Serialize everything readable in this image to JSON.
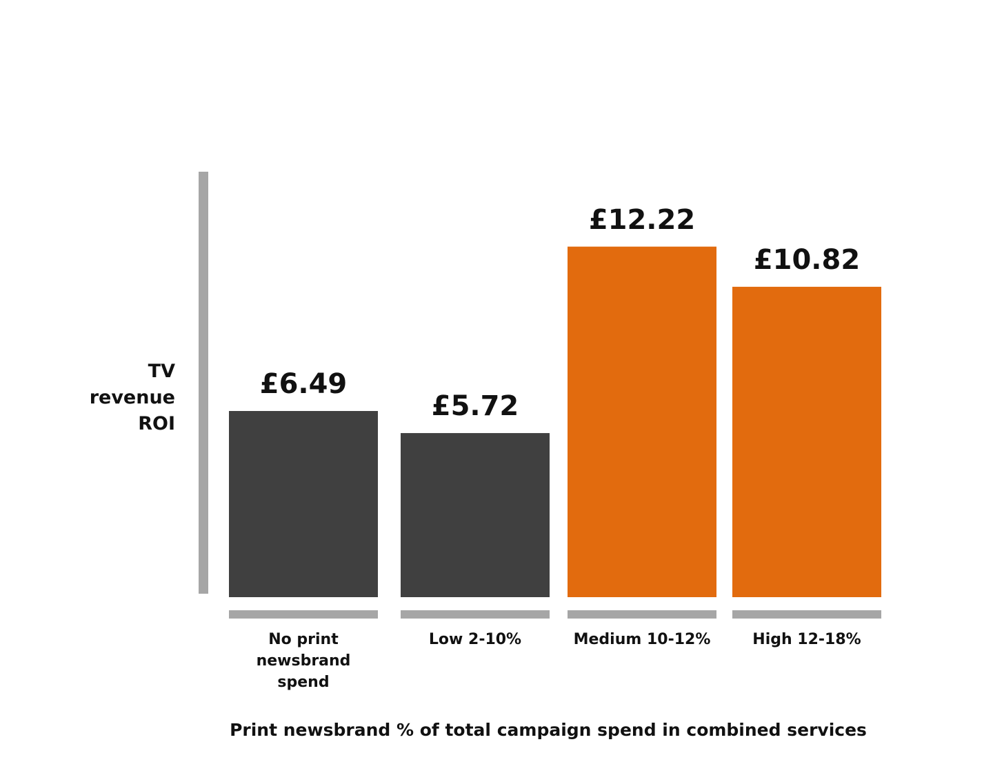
{
  "chart_data": {
    "type": "bar",
    "categories": [
      "No print\nnewsbrand\nspend",
      "Low 2-10%",
      "Medium 10-12%",
      "High 12-18%"
    ],
    "values": [
      6.49,
      5.72,
      12.22,
      10.82
    ],
    "value_labels": [
      "£6.49",
      "£5.72",
      "£12.22",
      "£10.82"
    ],
    "bar_colors": [
      "#404040",
      "#404040",
      "#e26b0e",
      "#e26b0e"
    ],
    "axis_color": "#a6a6a6",
    "ylabel": "TV\nrevenue\nROI",
    "xlabel": "Print newsbrand % of total campaign spend in combined services",
    "ylim": [
      0,
      15
    ],
    "grid": false,
    "legend": "none"
  }
}
